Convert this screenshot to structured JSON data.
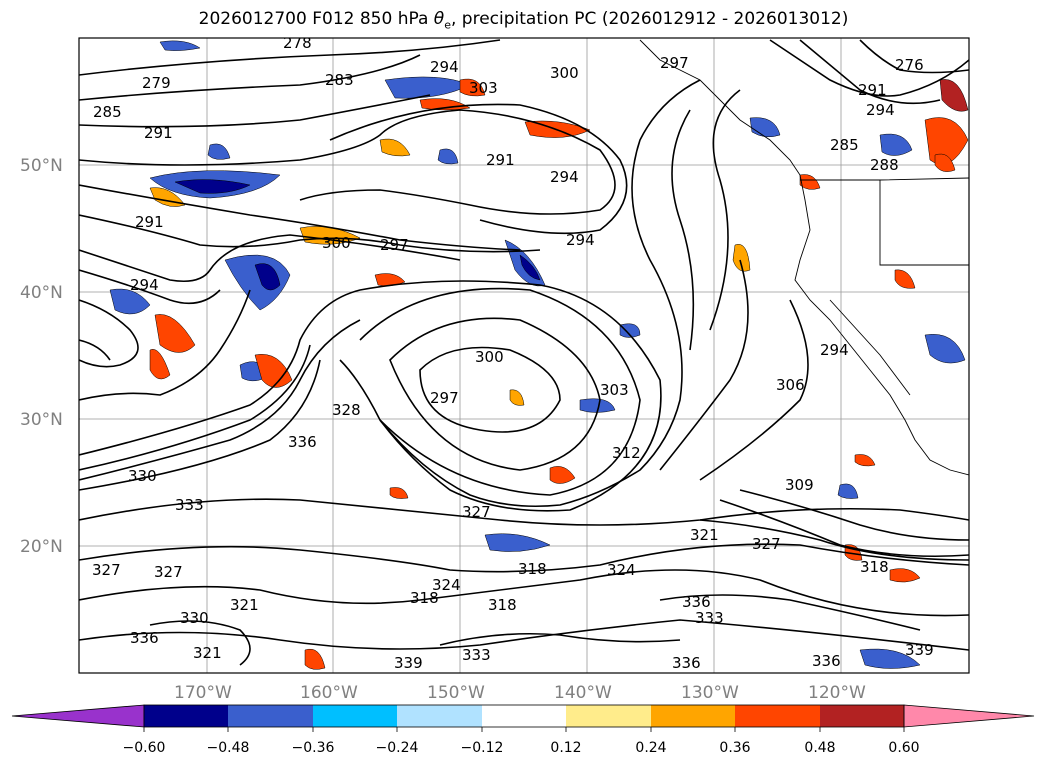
{
  "title_main": "2026012700 F012 850 hPa ",
  "title_symbol": "θ",
  "title_sub": "e",
  "title_rest": ", precipitation PC (2026012912 - 2026013012)",
  "lat_labels": [
    "50°N",
    "40°N",
    "30°N",
    "20°N"
  ],
  "lon_labels": [
    "170°W",
    "160°W",
    "150°W",
    "140°W",
    "130°W",
    "120°W"
  ],
  "colorbar": {
    "tick_labels": [
      "−0.60",
      "−0.48",
      "−0.36",
      "−0.24",
      "−0.12",
      "0.12",
      "0.24",
      "0.36",
      "0.48",
      "0.60"
    ],
    "colors": [
      "#9932CC",
      "#00008B",
      "#3A5FCD",
      "#00BFFF",
      "#B0E2FF",
      "#FFFFFF",
      "#FFEC8B",
      "#FFA500",
      "#FF4500",
      "#B22222",
      "#FF88AA"
    ]
  },
  "contour_labels": [
    "279",
    "278",
    "283",
    "285",
    "291",
    "294",
    "303",
    "300",
    "297",
    "276",
    "291",
    "294",
    "291",
    "294",
    "300",
    "297",
    "294",
    "291",
    "294",
    "300",
    "297",
    "303",
    "306",
    "328",
    "336",
    "330",
    "333",
    "327",
    "312",
    "309",
    "321",
    "327",
    "318",
    "324",
    "318",
    "324",
    "327",
    "318",
    "321",
    "330",
    "336",
    "333",
    "336",
    "339",
    "333",
    "336",
    "339",
    "336",
    "321",
    "318",
    "327",
    "285",
    "288",
    "294"
  ],
  "colors": {
    "land_lines": "#000000",
    "grid": "#999999",
    "negative_fill": "#3A5FCD",
    "positive_fill": "#FF4500"
  }
}
